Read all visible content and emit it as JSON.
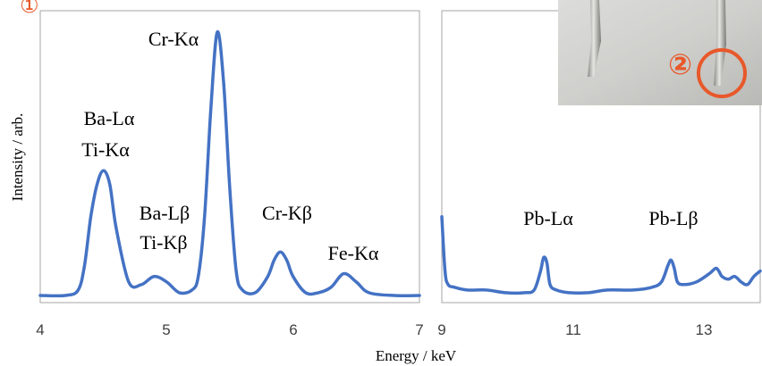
{
  "chart_data": [
    {
      "type": "line",
      "xlim": [
        4,
        7
      ],
      "ylim": [
        0,
        1
      ],
      "x_ticks": [
        "4",
        "5",
        "6",
        "7"
      ],
      "ylabel": "Intensity / arb.",
      "series": [
        {
          "color": "#4472C4",
          "x": [
            4.0,
            4.2,
            4.3,
            4.35,
            4.4,
            4.45,
            4.5,
            4.55,
            4.6,
            4.7,
            4.8,
            4.9,
            5.0,
            5.1,
            5.2,
            5.25,
            5.3,
            5.35,
            5.4,
            5.45,
            5.5,
            5.55,
            5.6,
            5.7,
            5.8,
            5.85,
            5.9,
            5.95,
            6.0,
            6.1,
            6.2,
            6.3,
            6.4,
            6.5,
            6.6,
            6.8,
            7.0
          ],
          "y": [
            0.01,
            0.01,
            0.03,
            0.12,
            0.3,
            0.42,
            0.47,
            0.42,
            0.26,
            0.06,
            0.05,
            0.08,
            0.06,
            0.02,
            0.03,
            0.08,
            0.3,
            0.7,
            0.98,
            0.8,
            0.4,
            0.1,
            0.03,
            0.02,
            0.08,
            0.14,
            0.17,
            0.14,
            0.08,
            0.02,
            0.02,
            0.04,
            0.09,
            0.06,
            0.02,
            0.01,
            0.01
          ]
        }
      ],
      "annotations": [
        {
          "text": "Cr-Kα",
          "x": 5.42,
          "y": 1.0
        },
        {
          "text": "Ba-Lα",
          "x": 4.48,
          "y": 0.66
        },
        {
          "text": "Ti-Kα",
          "x": 4.48,
          "y": 0.55
        },
        {
          "text": "Ba-Lβ",
          "x": 4.85,
          "y": 0.3
        },
        {
          "text": "Ti-Kβ",
          "x": 4.85,
          "y": 0.2
        },
        {
          "text": "Cr-Kβ",
          "x": 5.9,
          "y": 0.3
        },
        {
          "text": "Fe-Kα",
          "x": 6.4,
          "y": 0.15
        }
      ]
    },
    {
      "type": "line",
      "xlim": [
        9,
        14
      ],
      "ylim": [
        0,
        1
      ],
      "x_ticks": [
        "9",
        "11",
        "13"
      ],
      "series": [
        {
          "color": "#4472C4",
          "x": [
            9.0,
            9.05,
            9.1,
            9.2,
            9.4,
            9.7,
            10.0,
            10.3,
            10.45,
            10.55,
            10.6,
            10.65,
            10.7,
            10.8,
            11.0,
            11.3,
            11.6,
            12.0,
            12.3,
            12.45,
            12.55,
            12.6,
            12.65,
            12.7,
            12.8,
            13.0,
            13.2,
            13.3,
            13.35,
            13.4,
            13.5,
            13.6,
            13.7,
            13.8,
            13.9,
            14.0
          ],
          "y": [
            0.3,
            0.1,
            0.05,
            0.04,
            0.03,
            0.03,
            0.02,
            0.02,
            0.03,
            0.1,
            0.15,
            0.13,
            0.05,
            0.03,
            0.02,
            0.02,
            0.03,
            0.03,
            0.04,
            0.06,
            0.12,
            0.14,
            0.11,
            0.06,
            0.05,
            0.06,
            0.09,
            0.11,
            0.1,
            0.08,
            0.07,
            0.08,
            0.06,
            0.05,
            0.08,
            0.1
          ]
        }
      ],
      "annotations": [
        {
          "text": "Pb-Lα",
          "x": 10.5,
          "y": 0.28
        },
        {
          "text": "Pb-Lβ",
          "x": 12.6,
          "y": 0.28
        }
      ]
    }
  ],
  "xlabel": "Energy / keV",
  "marker": {
    "text": "②",
    "color": "#E8582A"
  },
  "corner_marker": {
    "text": "①",
    "color": "#E8582A"
  }
}
